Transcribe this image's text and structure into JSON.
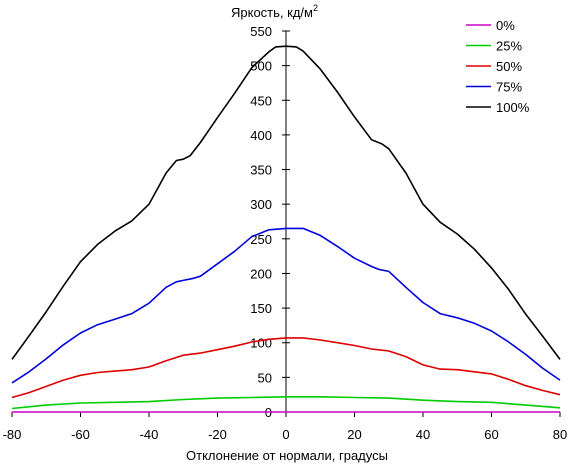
{
  "chart_data": {
    "type": "line",
    "ylabel": "Яркость, кд/м",
    "ylabel_superscript": "2",
    "xlabel": "Отклонение от нормали, градусы",
    "xlim": [
      -80,
      80
    ],
    "ylim": [
      0,
      550
    ],
    "x_ticks": [
      -80,
      -60,
      -40,
      -20,
      0,
      20,
      40,
      60,
      80
    ],
    "y_ticks": [
      0,
      50,
      100,
      150,
      200,
      250,
      300,
      350,
      400,
      450,
      500,
      550
    ],
    "grid": false,
    "legend_position": "top-right",
    "series": [
      {
        "name": "0%",
        "color": "#cc00cc",
        "x": [
          -80,
          80
        ],
        "y": [
          0,
          0
        ]
      },
      {
        "name": "25%",
        "color": "#00cc00",
        "x": [
          -80,
          -70,
          -60,
          -50,
          -40,
          -30,
          -20,
          -10,
          0,
          10,
          20,
          30,
          40,
          50,
          60,
          70,
          80
        ],
        "y": [
          5,
          10,
          13,
          14,
          15,
          18,
          20,
          21,
          22,
          22,
          21,
          20,
          17,
          15,
          14,
          10,
          6
        ]
      },
      {
        "name": "50%",
        "color": "#dd0000",
        "x": [
          -80,
          -75,
          -70,
          -65,
          -60,
          -55,
          -50,
          -45,
          -40,
          -35,
          -30,
          -25,
          -20,
          -15,
          -10,
          -5,
          0,
          5,
          10,
          15,
          20,
          25,
          30,
          35,
          40,
          45,
          50,
          55,
          60,
          65,
          70,
          75,
          80
        ],
        "y": [
          21,
          28,
          37,
          46,
          53,
          57,
          59,
          61,
          65,
          74,
          82,
          85,
          90,
          95,
          101,
          105,
          107,
          107,
          104,
          100,
          96,
          91,
          88,
          80,
          68,
          62,
          61,
          58,
          55,
          47,
          38,
          31,
          25
        ]
      },
      {
        "name": "75%",
        "color": "#0000dd",
        "x": [
          -80,
          -75,
          -70,
          -65,
          -60,
          -55,
          -50,
          -45,
          -40,
          -35,
          -32,
          -30,
          -27,
          -25,
          -20,
          -15,
          -10,
          -5,
          0,
          5,
          10,
          15,
          20,
          25,
          27,
          30,
          35,
          40,
          45,
          50,
          55,
          60,
          65,
          70,
          75,
          80
        ],
        "y": [
          42,
          58,
          77,
          97,
          114,
          126,
          134,
          142,
          157,
          180,
          188,
          190,
          193,
          196,
          214,
          232,
          253,
          263,
          265,
          265,
          255,
          239,
          222,
          210,
          206,
          203,
          180,
          158,
          142,
          136,
          128,
          117,
          101,
          83,
          63,
          46
        ]
      },
      {
        "name": "100%",
        "color": "#000000",
        "x": [
          -80,
          -75,
          -70,
          -65,
          -60,
          -55,
          -50,
          -45,
          -40,
          -35,
          -32,
          -30,
          -28,
          -25,
          -20,
          -15,
          -10,
          -5,
          -3,
          0,
          3,
          5,
          10,
          15,
          20,
          25,
          28,
          30,
          35,
          40,
          45,
          50,
          55,
          60,
          65,
          70,
          75,
          80
        ],
        "y": [
          76,
          110,
          145,
          182,
          217,
          242,
          261,
          276,
          300,
          345,
          363,
          365,
          370,
          389,
          425,
          460,
          497,
          520,
          527,
          528,
          527,
          521,
          495,
          462,
          426,
          393,
          387,
          380,
          345,
          300,
          274,
          257,
          235,
          208,
          177,
          141,
          109,
          76
        ]
      }
    ]
  }
}
